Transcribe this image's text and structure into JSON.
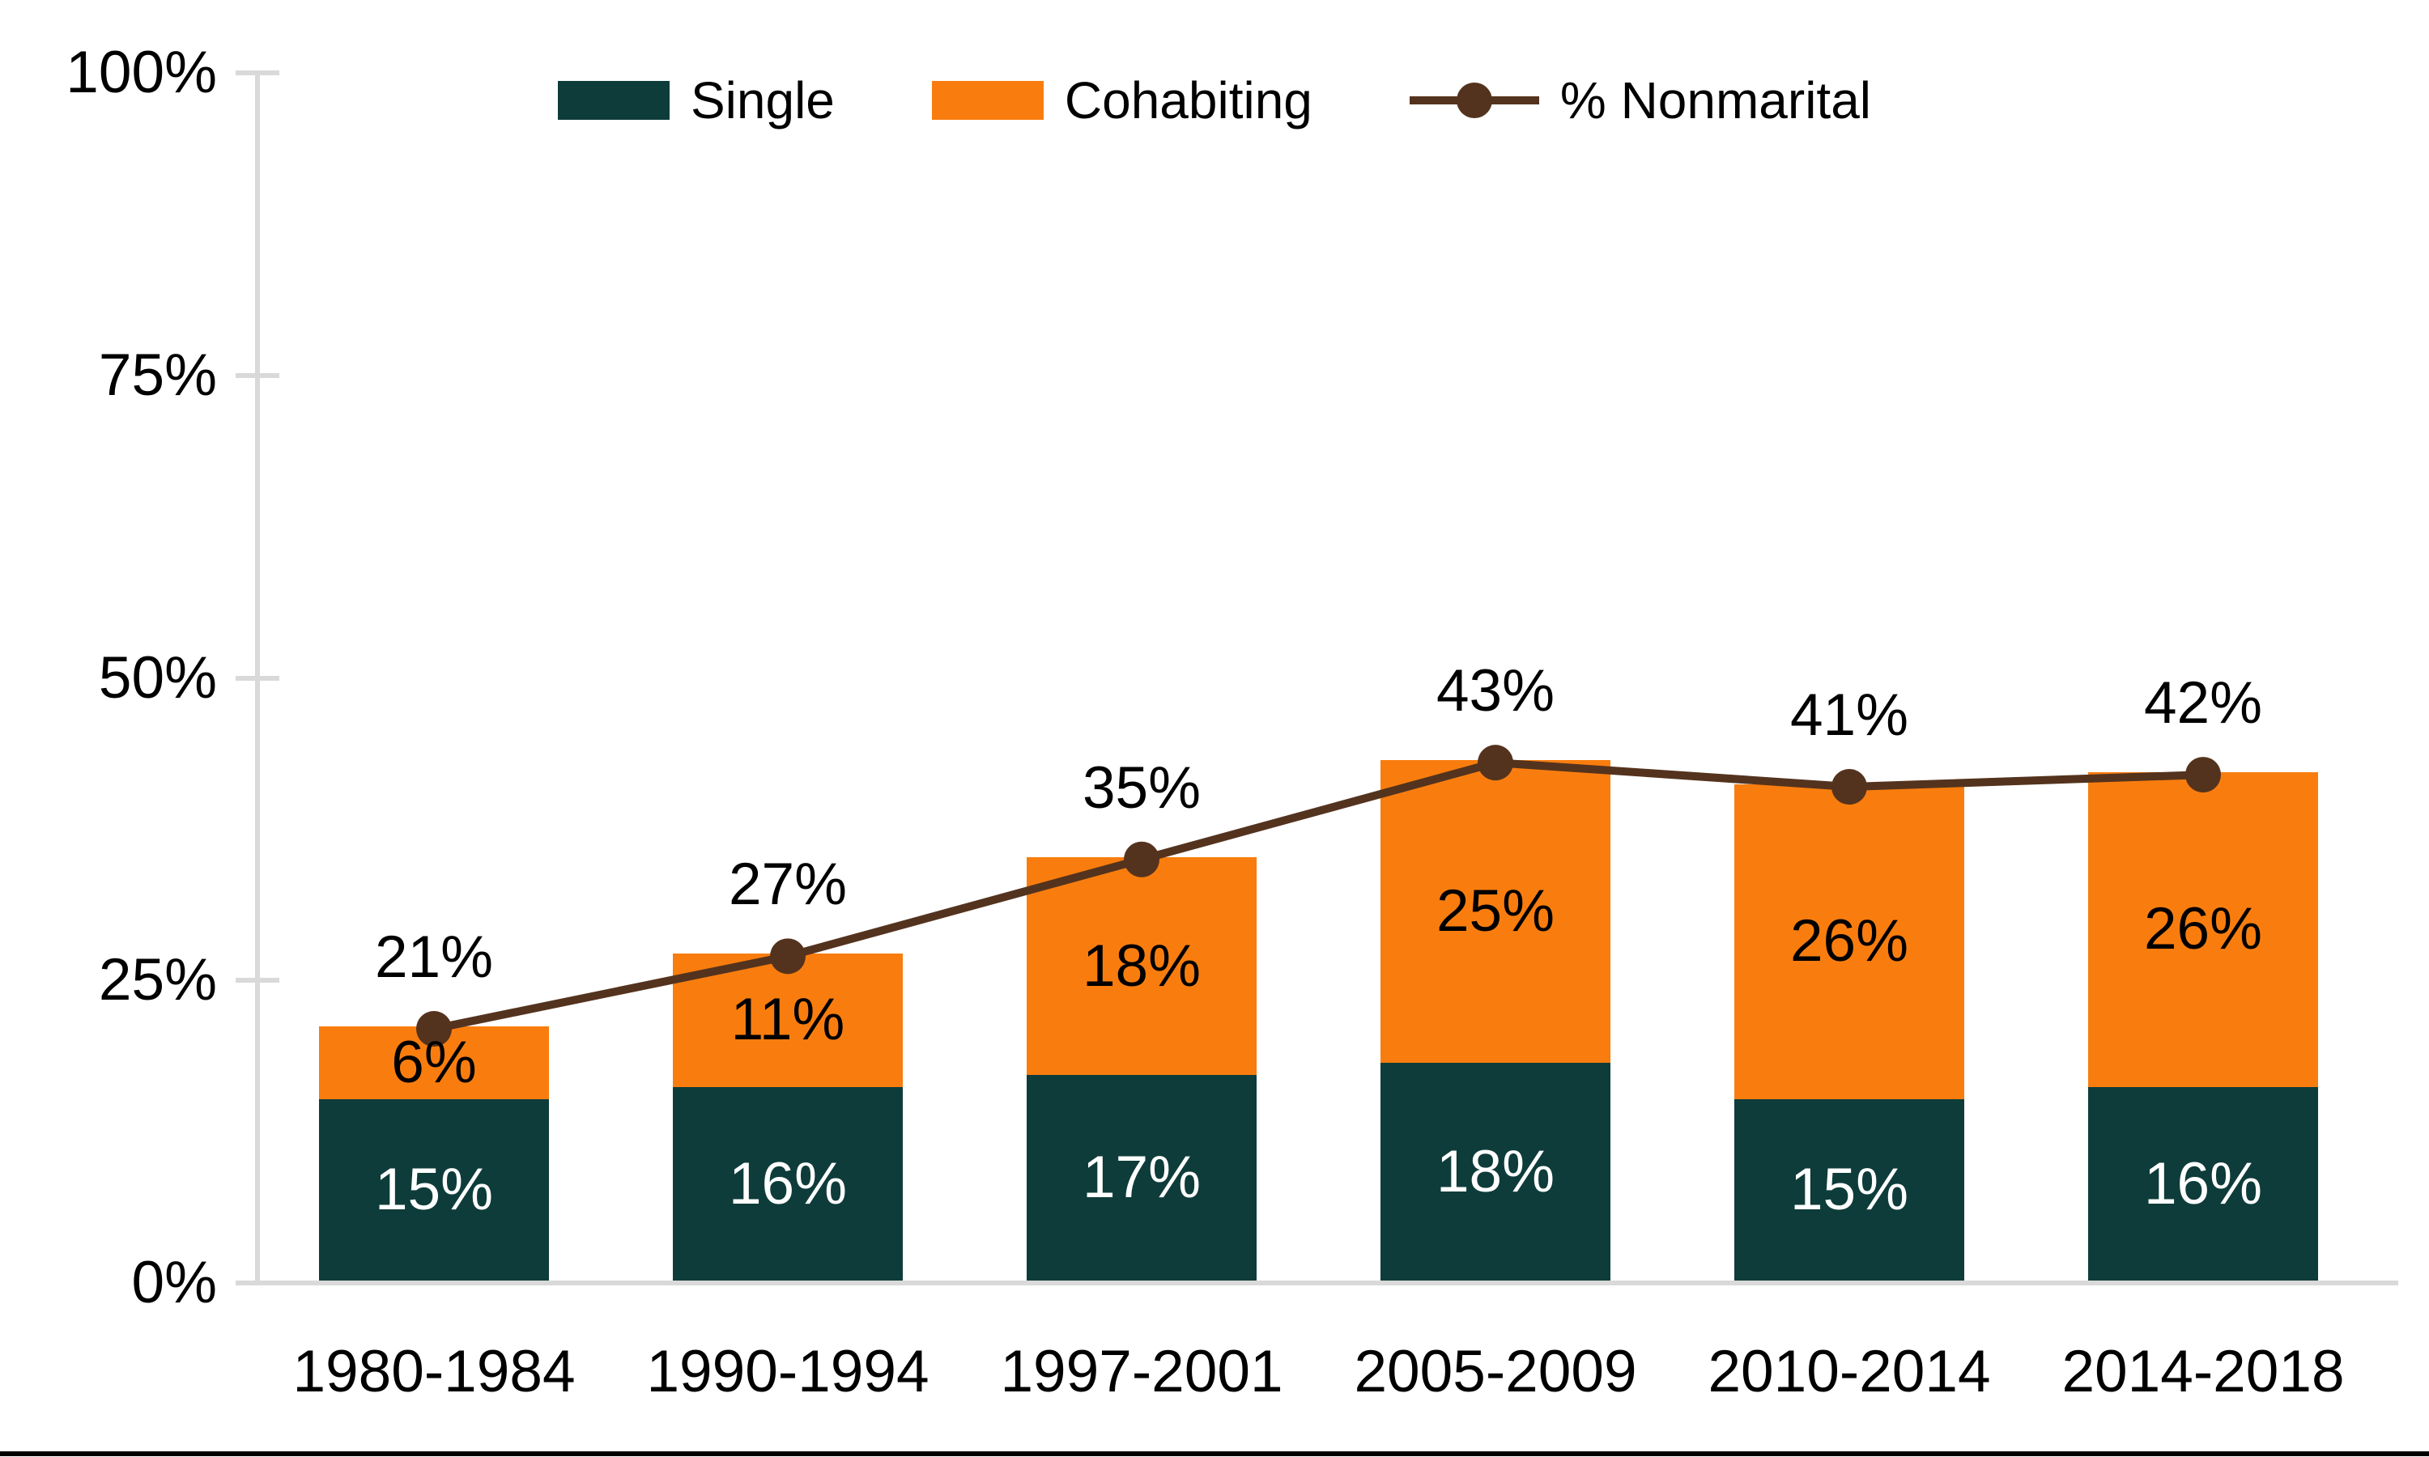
{
  "chart_data": {
    "type": "stacked-bar-line",
    "categories": [
      "1980-1984",
      "1990-1994",
      "1997-2001",
      "2005-2009",
      "2010-2014",
      "2014-2018"
    ],
    "series": [
      {
        "name": "Single",
        "color": "#0e3c3a",
        "label_color": "#ffffff",
        "values": [
          15,
          16,
          17,
          18,
          15,
          16
        ]
      },
      {
        "name": "Cohabiting",
        "color": "#f97d0e",
        "label_color": "#000000",
        "values": [
          6,
          11,
          18,
          25,
          26,
          26
        ]
      }
    ],
    "line_series": {
      "name": "% Nonmarital",
      "color": "#54331e",
      "values": [
        21,
        27,
        35,
        43,
        41,
        42
      ]
    },
    "value_suffix": "%",
    "y_axis": {
      "min": 0,
      "max": 100,
      "tick_values": [
        0,
        25,
        50,
        75,
        100
      ],
      "tick_labels": [
        "0%",
        "25%",
        "50%",
        "75%",
        "100%"
      ],
      "axis_color": "#d9d9d9"
    },
    "legend_position": "top",
    "grid": false,
    "label_text_color": "#000000"
  }
}
